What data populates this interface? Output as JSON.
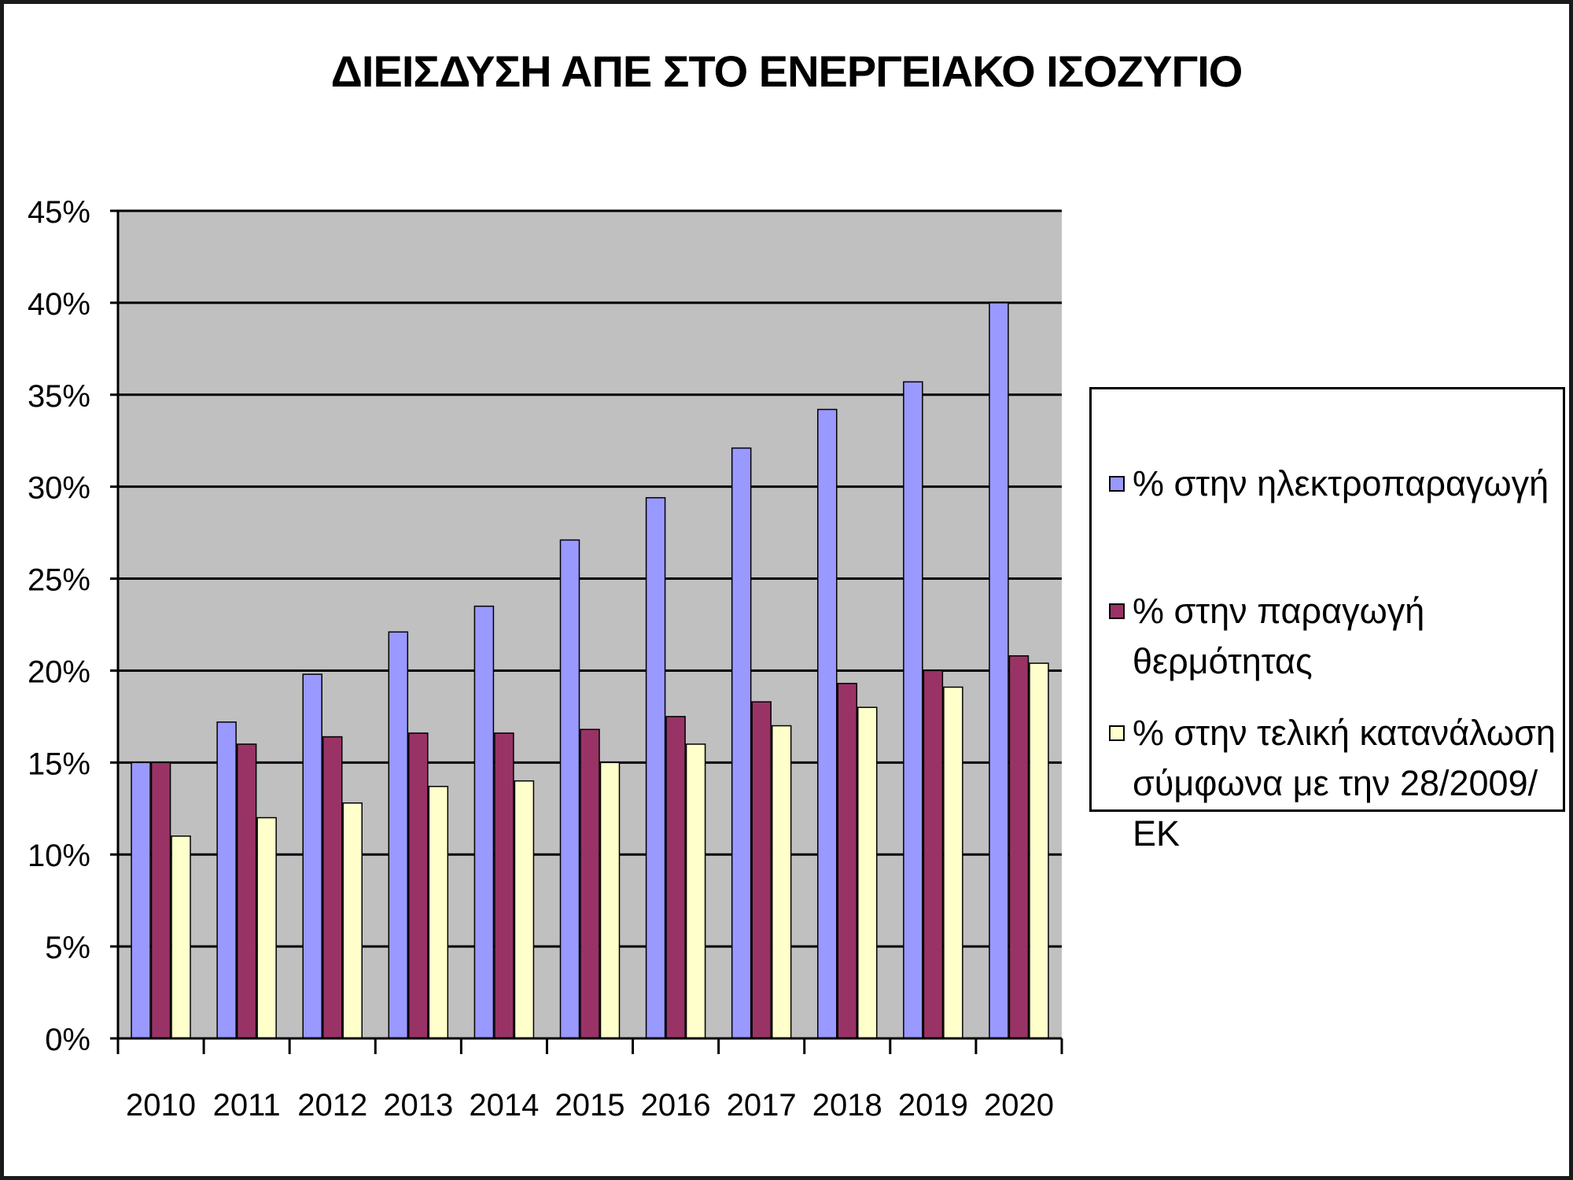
{
  "chart_data": {
    "type": "bar",
    "title": "ΔΙΕΙΣΔΥΣΗ ΑΠΕ ΣΤΟ ΕΝΕΡΓΕΙΑΚΟ ΙΣΟΖΥΓΙΟ",
    "xlabel": "",
    "ylabel": "",
    "categories": [
      "2010",
      "2011",
      "2012",
      "2013",
      "2014",
      "2015",
      "2016",
      "2017",
      "2018",
      "2019",
      "2020"
    ],
    "series": [
      {
        "name": "% στην ηλεκτροπαραγωγή",
        "color": "#9999ff",
        "values": [
          15,
          17.2,
          19.8,
          22.1,
          23.5,
          27.1,
          29.4,
          32.1,
          34.2,
          35.7,
          40
        ]
      },
      {
        "name": "% στην παραγωγή  θερμότητας",
        "color": "#993366",
        "values": [
          15,
          16,
          16.4,
          16.6,
          16.6,
          16.8,
          17.5,
          18.3,
          19.3,
          20,
          20.8
        ]
      },
      {
        "name": "% στην τελική  κατανάλωση σύμφωνα με την 28/2009/ΕΚ",
        "color": "#ffffcc",
        "values": [
          11,
          12,
          12.8,
          13.7,
          14,
          15,
          16,
          17,
          18,
          19.1,
          20.4
        ]
      }
    ],
    "ylim": [
      0,
      45
    ],
    "yticks": [
      "0%",
      "5%",
      "10%",
      "15%",
      "20%",
      "25%",
      "30%",
      "35%",
      "40%",
      "45%"
    ],
    "ytick_values": [
      0,
      5,
      10,
      15,
      20,
      25,
      30,
      35,
      40,
      45
    ],
    "grid": true,
    "plot_background": "#c0c0c0",
    "legend_position": "right"
  },
  "legend": {
    "items": [
      {
        "label": "% στην ηλεκτροπαραγωγή"
      },
      {
        "label": "% στην παραγωγή  θερμότητας"
      },
      {
        "label": "% στην τελική  κατανάλωση σύμφωνα με την 28/2009/ΕΚ"
      }
    ]
  }
}
